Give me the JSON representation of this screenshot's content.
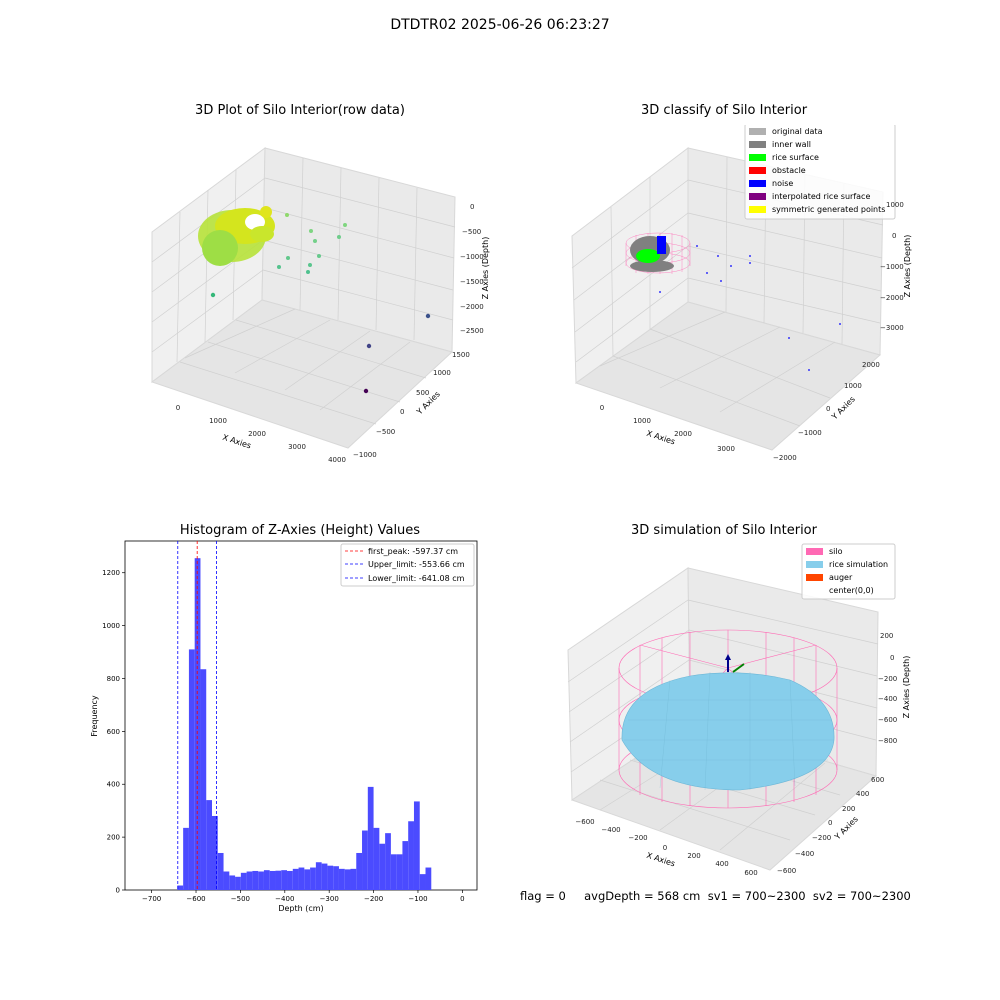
{
  "suptitle": "DTDTR02 2025-06-26 06:23:27",
  "footer": "flag = 0     avgDepth = 568 cm  sv1 = 700~2300  sv2 = 700~2300",
  "panels": {
    "raw": {
      "title": "3D Plot of Silo Interior(row data)",
      "xlabel": "X Axies",
      "ylabel": "Y Axies",
      "zlabel": "Z Axies (Depth)",
      "xticks": [
        "0",
        "1000",
        "2000",
        "3000",
        "4000"
      ],
      "yticks": [
        "1500",
        "1000",
        "500",
        "0",
        "−500",
        "−1000"
      ],
      "zticks": [
        "0",
        "−500",
        "−1000",
        "−1500",
        "−2000",
        "−2500"
      ]
    },
    "classify": {
      "title": "3D classify of Silo Interior",
      "xlabel": "X Axies",
      "ylabel": "Y Axies",
      "zlabel": "Z Axies (Depth)",
      "xticks": [
        "0",
        "1000",
        "2000",
        "3000"
      ],
      "yticks": [
        "2000",
        "1000",
        "0",
        "−1000",
        "−2000"
      ],
      "zticks": [
        "1000",
        "0",
        "−1000",
        "−2000",
        "−3000"
      ],
      "legend": [
        {
          "label": "original data",
          "color": "#b0b0b0"
        },
        {
          "label": "inner wall",
          "color": "#808080"
        },
        {
          "label": "rice surface",
          "color": "#00ff00"
        },
        {
          "label": "obstacle",
          "color": "#ff0000"
        },
        {
          "label": "noise",
          "color": "#0000ff"
        },
        {
          "label": "interpolated rice surface",
          "color": "#800080"
        },
        {
          "label": "symmetric generated points",
          "color": "#ffff00"
        }
      ]
    },
    "simulation": {
      "title": "3D simulation of Silo Interior",
      "xlabel": "X Axies",
      "ylabel": "Y Axies",
      "zlabel": "Z Axies (Depth)",
      "xticks": [
        "−600",
        "−400",
        "−200",
        "0",
        "200",
        "400",
        "600"
      ],
      "yticks": [
        "600",
        "400",
        "200",
        "0",
        "−200",
        "−400",
        "−600"
      ],
      "zticks": [
        "200",
        "0",
        "−200",
        "−400",
        "−600",
        "−800"
      ],
      "legend": [
        {
          "label": "silo",
          "color": "#ff69b4"
        },
        {
          "label": "rice simulation",
          "color": "#87ceeb"
        },
        {
          "label": "auger",
          "color": "#ff4500"
        },
        {
          "label": "center(0,0)",
          "color": ""
        }
      ]
    }
  },
  "chart_data": {
    "type": "bar",
    "title": "Histogram of Z-Axies (Height) Values",
    "xlabel": "Depth (cm)",
    "ylabel": "Frequency",
    "xlim": [
      -760,
      33
    ],
    "ylim": [
      0,
      1320
    ],
    "xticks": [
      -700,
      -600,
      -500,
      -400,
      -300,
      -200,
      -100,
      0
    ],
    "yticks": [
      0,
      200,
      400,
      600,
      800,
      1000,
      1200
    ],
    "bar_color": "#4b4bff",
    "bin_width": 13,
    "bin_start": -642,
    "values": [
      17,
      235,
      910,
      1255,
      835,
      340,
      280,
      140,
      70,
      55,
      50,
      65,
      70,
      72,
      70,
      75,
      72,
      73,
      75,
      72,
      80,
      85,
      78,
      85,
      105,
      100,
      92,
      90,
      80,
      78,
      80,
      140,
      225,
      390,
      235,
      175,
      215,
      135,
      135,
      185,
      260,
      335,
      60,
      85
    ],
    "lines": [
      {
        "label": "first_peak: -597.37 cm",
        "x": -597.37,
        "color": "#ff0000"
      },
      {
        "label": "Upper_limit: -553.66 cm",
        "x": -553.66,
        "color": "#0000ff"
      },
      {
        "label": "Lower_limit: -641.08 cm",
        "x": -641.08,
        "color": "#0000ff"
      }
    ],
    "legend_position": "upper right"
  }
}
